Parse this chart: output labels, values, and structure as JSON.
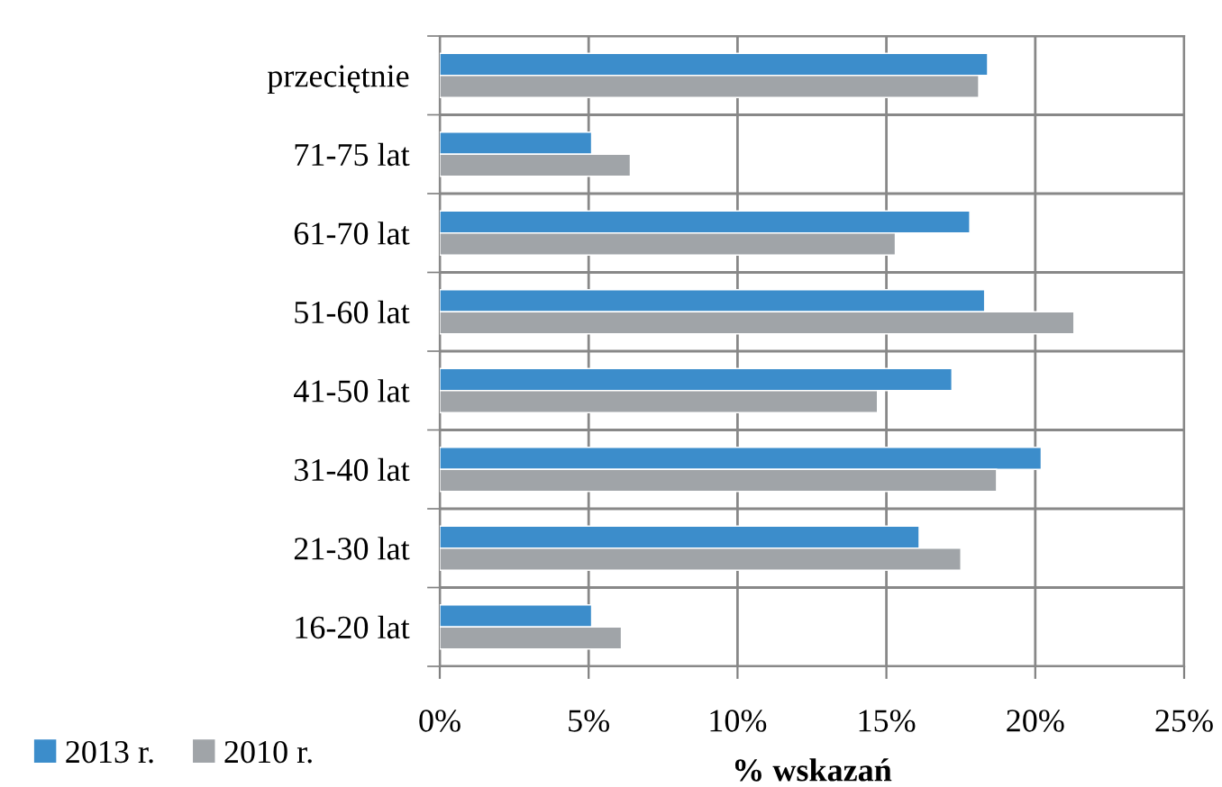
{
  "chart_data": {
    "type": "bar",
    "orientation": "horizontal",
    "xlabel": "% wskazań",
    "categories": [
      "przeciętnie",
      "71-75 lat",
      "61-70 lat",
      "51-60 lat",
      "41-50 lat",
      "31-40 lat",
      "21-30 lat",
      "16-20 lat"
    ],
    "series": [
      {
        "name": "2013 r.",
        "color": "#3c8dcb",
        "values": [
          18.4,
          5.1,
          17.8,
          18.3,
          17.2,
          20.2,
          16.1,
          5.1
        ]
      },
      {
        "name": "2010 r.",
        "color": "#a0a4a8",
        "values": [
          18.1,
          6.4,
          15.3,
          21.3,
          14.7,
          18.7,
          17.5,
          6.1
        ]
      }
    ],
    "xlim": [
      0,
      25
    ],
    "xticks": [
      {
        "value": 0,
        "label": "0%"
      },
      {
        "value": 5,
        "label": "5%"
      },
      {
        "value": 10,
        "label": "10%"
      },
      {
        "value": 15,
        "label": "15%"
      },
      {
        "value": 20,
        "label": "20%"
      },
      {
        "value": 25,
        "label": "25%"
      }
    ],
    "grid": true,
    "legend": "bottom left"
  }
}
